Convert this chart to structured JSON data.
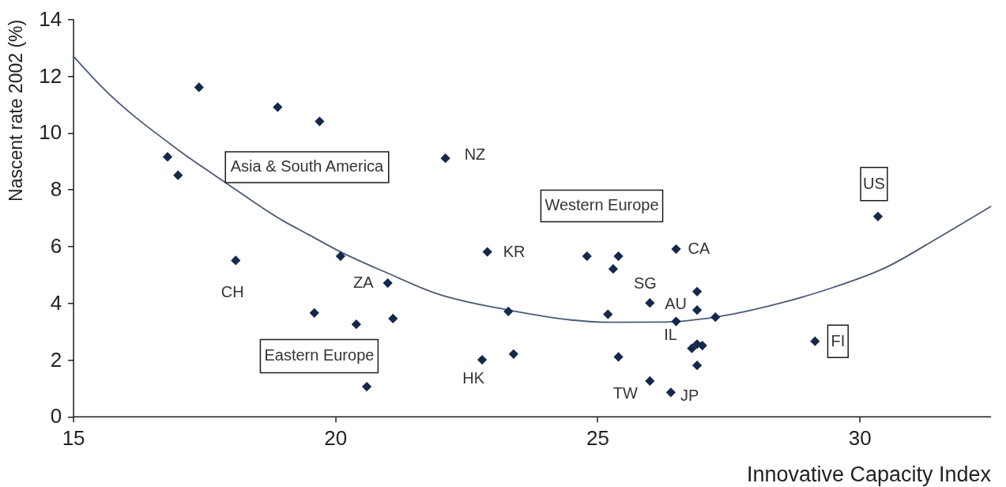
{
  "chart_data": {
    "type": "scatter",
    "xlabel": "Innovative Capacity Index",
    "ylabel": "Nascent rate 2002 (%)",
    "xlim": [
      15,
      32.5
    ],
    "xticks": [
      15,
      20,
      25,
      30
    ],
    "ylim": [
      0,
      14
    ],
    "yticks": [
      0,
      2,
      4,
      6,
      8,
      10,
      12,
      14
    ],
    "series": [
      {
        "type": "scatter",
        "marker": "diamond",
        "color": "#14284b",
        "x": [
          16.8,
          17.0,
          17.4,
          18.1,
          18.9,
          19.6,
          19.7,
          20.1,
          20.4,
          20.6,
          21.0,
          21.1,
          22.1,
          22.8,
          22.9,
          23.3,
          23.4,
          24.8,
          25.2,
          25.3,
          25.4,
          25.4,
          26.0,
          26.0,
          26.4,
          26.5,
          26.5,
          26.8,
          26.9,
          27.0,
          26.9,
          26.9,
          26.9,
          27.25,
          29.15,
          30.35
        ],
        "values": [
          9.15,
          8.5,
          11.6,
          5.5,
          10.9,
          3.65,
          10.4,
          5.65,
          3.25,
          1.05,
          4.7,
          3.45,
          9.1,
          2.0,
          5.8,
          3.7,
          2.2,
          5.65,
          3.6,
          5.2,
          5.65,
          2.1,
          4.0,
          1.25,
          0.85,
          5.9,
          3.35,
          2.4,
          2.55,
          2.5,
          4.4,
          3.75,
          1.8,
          3.5,
          2.65,
          7.05
        ]
      },
      {
        "type": "line",
        "line_style": "solid",
        "color": "#4d5a75",
        "x": [
          15,
          15.5,
          17.0,
          17.9,
          19.0,
          19.5,
          20.1,
          21.0,
          21.9,
          23.3,
          24.5,
          25.2,
          26.3,
          27.25,
          28.5,
          29.5,
          30.5,
          31.5,
          32.5
        ],
        "values": [
          12.7,
          11.7,
          9.4,
          8.25,
          6.9,
          6.4,
          5.8,
          5.05,
          4.35,
          3.75,
          3.4,
          3.32,
          3.33,
          3.5,
          4.0,
          4.55,
          5.25,
          6.3,
          7.4
        ]
      }
    ],
    "annotations": [
      "Asia & South America",
      "Western Europe",
      "Eastern Europe",
      {
        "text": "US",
        "x": 30.35,
        "y": 7.05
      },
      {
        "text": "FI",
        "x": 29.15,
        "y": 2.65
      },
      {
        "text": "NZ",
        "x": 22.1,
        "y": 9.1
      },
      {
        "text": "KR",
        "x": 22.9,
        "y": 5.8
      },
      {
        "text": "CA",
        "x": 26.5,
        "y": 5.9
      },
      {
        "text": "SG",
        "x": 26.0,
        "y": 4.0
      },
      {
        "text": "AU",
        "x": 26.9,
        "y": 3.75
      },
      {
        "text": "IL",
        "x": 26.5,
        "y": 3.35
      },
      {
        "text": "ZA",
        "x": 21.0,
        "y": 4.7
      },
      {
        "text": "CH",
        "x": 18.1,
        "y": 5.5
      },
      {
        "text": "HK",
        "x": 22.8,
        "y": 2.0
      },
      {
        "text": "TW",
        "x": 26.0,
        "y": 1.25
      },
      {
        "text": "JP",
        "x": 26.4,
        "y": 0.85
      }
    ]
  }
}
